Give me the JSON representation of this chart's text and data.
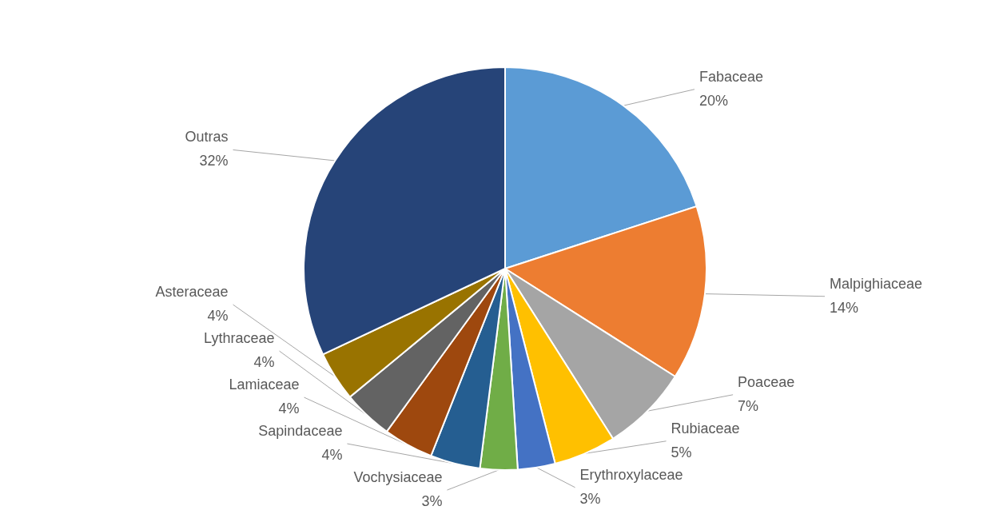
{
  "chart_data": {
    "type": "pie",
    "categories": [
      "Fabaceae",
      "Malpighiaceae",
      "Poaceae",
      "Rubiaceae",
      "Erythroxylaceae",
      "Vochysiaceae",
      "Sapindaceae",
      "Lamiaceae",
      "Lythraceae",
      "Asteraceae",
      "Outras"
    ],
    "values": [
      20,
      14,
      7,
      5,
      3,
      3,
      4,
      4,
      4,
      4,
      32
    ],
    "colors": [
      "#5b9bd5",
      "#ed7d31",
      "#a5a5a5",
      "#ffc000",
      "#4472c4",
      "#70ad47",
      "#255e91",
      "#9e480e",
      "#636363",
      "#997300",
      "#264478"
    ],
    "value_labels": [
      "20%",
      "14%",
      "7%",
      "5%",
      "3%",
      "3%",
      "4%",
      "4%",
      "4%",
      "4%",
      "32%"
    ]
  }
}
